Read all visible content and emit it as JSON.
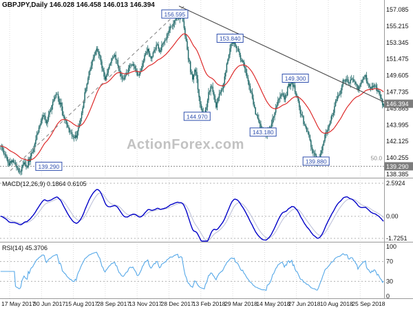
{
  "header": {
    "title": "GBPJPY,Daily 146.028 146.458 146.013 146.394"
  },
  "watermark": "ActionForex.com",
  "colors": {
    "candle": "#1f6868",
    "ma": "#dd2a2a",
    "macd_main": "#0000c8",
    "macd_signal": "#b9bdd6",
    "rsi": "#55a8e8",
    "annotation": "#2f4fae",
    "tag_bg": "#7d7d7d",
    "grid": "#d9d9d9",
    "dotted": "#b0b0b0",
    "level_line": "#8a8a8a",
    "trend_dashed": "#8a8a8a",
    "trend_solid": "#4a4a4a",
    "border": "#999999"
  },
  "chart_data": {
    "type": "candlestick",
    "symbol": "GBPJPY",
    "timeframe": "Daily",
    "ohlc": {
      "open": 146.028,
      "high": 146.458,
      "low": 146.013,
      "close": 146.394
    },
    "main": {
      "bars": 360,
      "price_axis_ticks": [
        157.085,
        155.215,
        153.345,
        151.475,
        149.605,
        147.735,
        145.865,
        143.995,
        142.125,
        140.255,
        138.385
      ],
      "ma_period": 34,
      "level_line": 139.29,
      "price_path": [
        [
          0.0,
          141.6
        ],
        [
          0.01,
          140.7
        ],
        [
          0.022,
          139.6
        ],
        [
          0.034,
          139.9
        ],
        [
          0.044,
          138.8
        ],
        [
          0.052,
          138.7
        ],
        [
          0.06,
          139.9
        ],
        [
          0.068,
          139.2
        ],
        [
          0.076,
          140.2
        ],
        [
          0.086,
          141.1
        ],
        [
          0.094,
          142.6
        ],
        [
          0.103,
          143.9
        ],
        [
          0.112,
          145.1
        ],
        [
          0.12,
          144.2
        ],
        [
          0.13,
          145.9
        ],
        [
          0.14,
          146.9
        ],
        [
          0.148,
          147.4
        ],
        [
          0.156,
          146.2
        ],
        [
          0.164,
          145.0
        ],
        [
          0.172,
          144.2
        ],
        [
          0.18,
          143.3
        ],
        [
          0.19,
          142.4
        ],
        [
          0.198,
          142.9
        ],
        [
          0.206,
          144.2
        ],
        [
          0.214,
          146.0
        ],
        [
          0.222,
          147.8
        ],
        [
          0.23,
          149.6
        ],
        [
          0.24,
          151.3
        ],
        [
          0.251,
          152.6
        ],
        [
          0.258,
          151.7
        ],
        [
          0.265,
          150.6
        ],
        [
          0.272,
          149.2
        ],
        [
          0.28,
          150.2
        ],
        [
          0.288,
          151.3
        ],
        [
          0.296,
          152.0
        ],
        [
          0.304,
          151.0
        ],
        [
          0.312,
          150.0
        ],
        [
          0.32,
          149.2
        ],
        [
          0.328,
          149.8
        ],
        [
          0.336,
          150.6
        ],
        [
          0.344,
          151.2
        ],
        [
          0.352,
          150.0
        ],
        [
          0.36,
          149.5
        ],
        [
          0.368,
          150.6
        ],
        [
          0.376,
          151.8
        ],
        [
          0.384,
          152.6
        ],
        [
          0.392,
          151.6
        ],
        [
          0.4,
          152.4
        ],
        [
          0.408,
          153.0
        ],
        [
          0.416,
          152.3
        ],
        [
          0.424,
          153.2
        ],
        [
          0.432,
          154.0
        ],
        [
          0.44,
          154.8
        ],
        [
          0.448,
          155.2
        ],
        [
          0.456,
          155.8
        ],
        [
          0.464,
          156.1
        ],
        [
          0.472,
          156.5
        ],
        [
          0.478,
          155.2
        ],
        [
          0.484,
          153.6
        ],
        [
          0.49,
          151.8
        ],
        [
          0.496,
          150.0
        ],
        [
          0.502,
          149.2
        ],
        [
          0.508,
          150.4
        ],
        [
          0.514,
          148.6
        ],
        [
          0.52,
          146.8
        ],
        [
          0.526,
          145.6
        ],
        [
          0.532,
          145.1
        ],
        [
          0.538,
          146.3
        ],
        [
          0.544,
          147.6
        ],
        [
          0.55,
          148.5
        ],
        [
          0.556,
          147.3
        ],
        [
          0.562,
          146.2
        ],
        [
          0.568,
          146.8
        ],
        [
          0.574,
          147.5
        ],
        [
          0.58,
          148.4
        ],
        [
          0.586,
          149.6
        ],
        [
          0.592,
          151.0
        ],
        [
          0.598,
          152.4
        ],
        [
          0.604,
          153.4
        ],
        [
          0.61,
          153.6
        ],
        [
          0.616,
          152.8
        ],
        [
          0.624,
          152.0
        ],
        [
          0.632,
          151.2
        ],
        [
          0.64,
          150.0
        ],
        [
          0.648,
          148.6
        ],
        [
          0.656,
          147.2
        ],
        [
          0.663,
          145.9
        ],
        [
          0.67,
          144.8
        ],
        [
          0.678,
          143.9
        ],
        [
          0.686,
          143.3
        ],
        [
          0.694,
          142.9
        ],
        [
          0.702,
          143.6
        ],
        [
          0.71,
          144.6
        ],
        [
          0.718,
          145.8
        ],
        [
          0.726,
          146.8
        ],
        [
          0.734,
          147.5
        ],
        [
          0.742,
          147.0
        ],
        [
          0.75,
          148.2
        ],
        [
          0.758,
          149.0
        ],
        [
          0.766,
          148.3
        ],
        [
          0.774,
          147.0
        ],
        [
          0.782,
          145.6
        ],
        [
          0.79,
          144.5
        ],
        [
          0.798,
          143.6
        ],
        [
          0.806,
          142.4
        ],
        [
          0.814,
          141.2
        ],
        [
          0.822,
          140.2
        ],
        [
          0.83,
          139.9
        ],
        [
          0.838,
          141.2
        ],
        [
          0.846,
          142.6
        ],
        [
          0.854,
          143.8
        ],
        [
          0.862,
          144.9
        ],
        [
          0.87,
          145.8
        ],
        [
          0.878,
          146.9
        ],
        [
          0.886,
          147.8
        ],
        [
          0.894,
          148.8
        ],
        [
          0.902,
          149.3
        ],
        [
          0.91,
          148.5
        ],
        [
          0.918,
          149.4
        ],
        [
          0.926,
          148.7
        ],
        [
          0.934,
          148.0
        ],
        [
          0.942,
          148.9
        ],
        [
          0.95,
          149.6
        ],
        [
          0.958,
          148.8
        ],
        [
          0.966,
          148.1
        ],
        [
          0.974,
          148.7
        ],
        [
          0.982,
          148.0
        ],
        [
          0.988,
          147.4
        ],
        [
          0.994,
          146.8
        ],
        [
          1.0,
          146.4
        ]
      ],
      "annotations": [
        {
          "text": "156.595",
          "x": 0.455,
          "price": 156.595
        },
        {
          "text": "153.840",
          "x": 0.599,
          "price": 153.84
        },
        {
          "text": "149.300",
          "x": 0.769,
          "price": 149.3
        },
        {
          "text": "144.970",
          "x": 0.513,
          "price": 144.97
        },
        {
          "text": "143.180",
          "x": 0.685,
          "price": 143.18
        },
        {
          "text": "139.880",
          "x": 0.823,
          "price": 139.88
        },
        {
          "text": "139.290",
          "x": 0.127,
          "price": 139.29
        }
      ],
      "axis_tags": [
        {
          "text": "146.394",
          "price": 146.394
        },
        {
          "text": "139.290",
          "price": 139.29
        }
      ],
      "extra_labels": [
        {
          "text": "50.0",
          "x": 0.965,
          "price": 139.98
        }
      ],
      "trendlines": [
        {
          "x1": 0.027,
          "p1": 138.8,
          "x2": 0.482,
          "p2": 157.6,
          "style": "dashed"
        },
        {
          "x1": 0.466,
          "p1": 157.5,
          "x2": 1.0,
          "p2": 146.6,
          "style": "solid"
        }
      ]
    },
    "macd": {
      "label": "MACD(12,26,9) 0.1864 0.6105",
      "fast": 12,
      "slow": 26,
      "signal": 9,
      "current_macd": 0.1864,
      "current_signal": 0.6105,
      "ticks": [
        {
          "v": 2.5924,
          "text": "2.5924"
        },
        {
          "v": 0,
          "text": "0.00"
        },
        {
          "v": -1.7251,
          "text": "-1.7251"
        }
      ]
    },
    "rsi": {
      "label": "RSI(14) 45.3706",
      "period": 14,
      "current": 45.3706,
      "ticks": [
        {
          "v": 100,
          "text": "100"
        },
        {
          "v": 70,
          "text": "70"
        },
        {
          "v": 30,
          "text": "30"
        },
        {
          "v": 0,
          "text": "0"
        }
      ],
      "dotted": [
        70,
        30
      ]
    },
    "x_axis": {
      "labels": [
        "17 May 2017",
        "30 Jun 2017",
        "15 Aug 2017",
        "28 Sep 2017",
        "13 Nov 2017",
        "28 Dec 2017",
        "13 Feb 2018",
        "29 Mar 2018",
        "14 May 2018",
        "27 Jun 2018",
        "10 Aug 2018",
        "25 Sep 2018"
      ]
    }
  }
}
